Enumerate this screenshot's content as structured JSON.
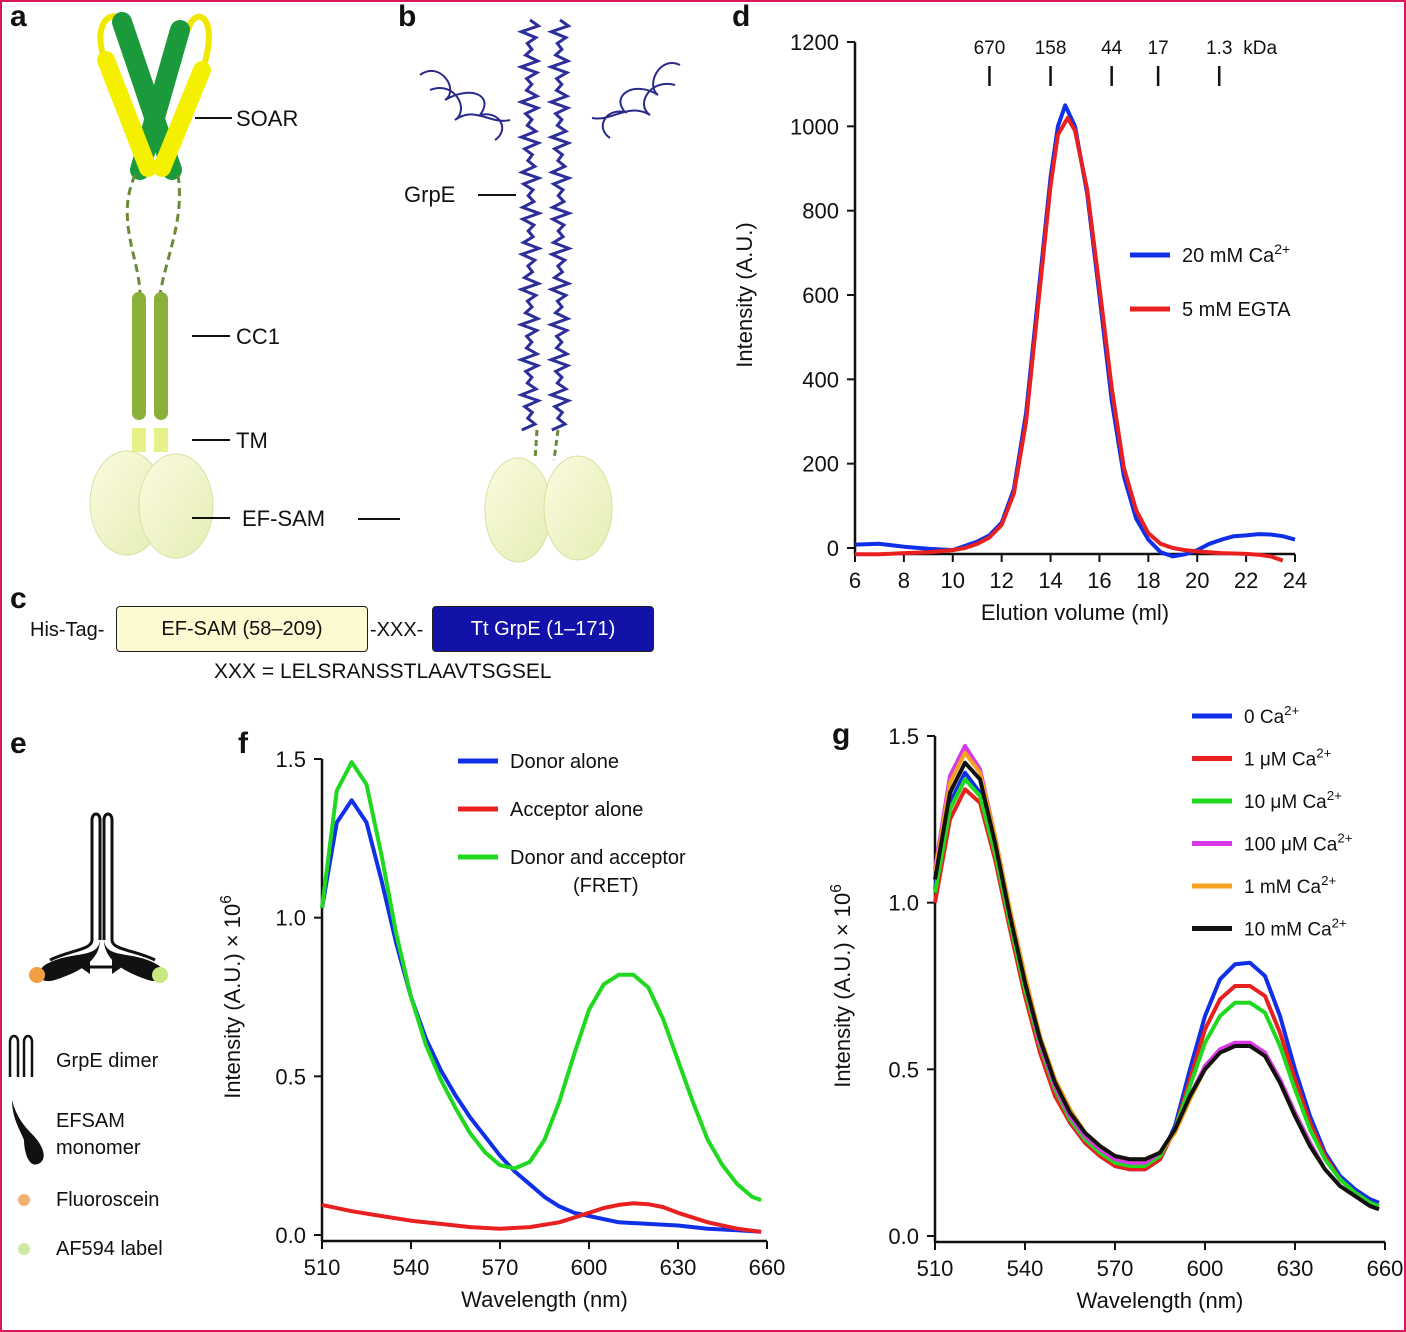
{
  "panels": {
    "a": {
      "letter": "a",
      "labels": {
        "soar": "SOAR",
        "cc1": "CC1",
        "tm": "TM",
        "efsam": "EF-SAM"
      }
    },
    "b": {
      "letter": "b",
      "labels": {
        "grpe": "GrpE"
      }
    },
    "c": {
      "letter": "c",
      "his_tag": "His-Tag-",
      "efsam_box": "EF-SAM (58–209)",
      "linker": "-XXX-",
      "grpe_box": "Tt GrpE (1–171)",
      "sequence": "XXX = LELSRANSSTLAAVTSGSEL",
      "colors": {
        "efsam_fill": "#fdf9d0",
        "grpe_fill": "#1212a8"
      }
    },
    "d": {
      "letter": "d"
    },
    "e": {
      "letter": "e",
      "legend": {
        "grpe_dimer": "GrpE dimer",
        "efsam_monomer_line1": "EFSAM",
        "efsam_monomer_line2": "monomer",
        "fluoroscein": "Fluoroscein",
        "af594": "AF594 label"
      }
    },
    "f": {
      "letter": "f"
    },
    "g": {
      "letter": "g"
    }
  },
  "chart_data": [
    {
      "panel": "d",
      "type": "line",
      "xlabel": "Elution volume (ml)",
      "ylabel": "Intensity (A.U.)",
      "xlim": [
        6,
        24
      ],
      "ylim": [
        0,
        1200
      ],
      "xticks": [
        "6",
        "8",
        "10",
        "12",
        "14",
        "16",
        "18",
        "20",
        "22",
        "24"
      ],
      "yticks": [
        "0",
        "200",
        "400",
        "600",
        "800",
        "1000",
        "1200"
      ],
      "mw_markers": {
        "positions": [
          11.5,
          14.0,
          16.5,
          18.4,
          20.9
        ],
        "labels": [
          "670",
          "158",
          "44",
          "17",
          "1.3"
        ],
        "unit": "kDa"
      },
      "legend_position": "right",
      "series": [
        {
          "name": "20 mM Ca2+",
          "color": "#1030e8",
          "x": [
            6,
            7,
            8,
            9,
            10,
            10.5,
            11,
            11.5,
            12,
            12.5,
            13,
            13.5,
            14,
            14.3,
            14.6,
            15,
            15.5,
            16,
            16.5,
            17,
            17.5,
            18,
            18.5,
            19,
            19.5,
            20,
            20.5,
            21,
            21.5,
            22,
            22.5,
            23,
            23.5,
            24
          ],
          "y": [
            8,
            10,
            3,
            -2,
            -5,
            5,
            15,
            30,
            60,
            140,
            320,
            600,
            880,
            1000,
            1050,
            1000,
            840,
            600,
            350,
            170,
            70,
            20,
            -10,
            -20,
            -15,
            -5,
            10,
            20,
            28,
            30,
            33,
            32,
            28,
            20
          ]
        },
        {
          "name": "5 mM EGTA",
          "color": "#e82020",
          "x": [
            6,
            7,
            8,
            9,
            10,
            10.5,
            11,
            11.5,
            12,
            12.5,
            13,
            13.5,
            14,
            14.3,
            14.7,
            15,
            15.5,
            16,
            16.5,
            17,
            17.5,
            18,
            18.5,
            19,
            19.5,
            20,
            20.5,
            21,
            21.5,
            22,
            22.5,
            23,
            23.5
          ],
          "y": [
            -15,
            -15,
            -12,
            -10,
            -5,
            0,
            10,
            25,
            55,
            130,
            300,
            580,
            860,
            980,
            1020,
            990,
            850,
            620,
            380,
            190,
            90,
            35,
            10,
            0,
            -5,
            -8,
            -10,
            -12,
            -13,
            -14,
            -16,
            -20,
            -30
          ]
        }
      ]
    },
    {
      "panel": "f",
      "type": "line",
      "xlabel": "Wavelength (nm)",
      "ylabel": "Intensity (A.U.) × 10",
      "ylabel_exp": "6",
      "xlim": [
        510,
        660
      ],
      "ylim": [
        0,
        1.5
      ],
      "xticks": [
        "510",
        "540",
        "570",
        "600",
        "630",
        "660"
      ],
      "yticks": [
        "0.0",
        "0.5",
        "1.0",
        "1.5"
      ],
      "legend_position": "top-right",
      "series": [
        {
          "name": "Donor alone",
          "color": "#1030e8",
          "x": [
            510,
            515,
            520,
            525,
            530,
            535,
            540,
            545,
            550,
            555,
            560,
            565,
            570,
            575,
            580,
            585,
            590,
            595,
            600,
            610,
            620,
            630,
            640,
            650,
            658
          ],
          "y": [
            1.03,
            1.3,
            1.37,
            1.3,
            1.12,
            0.92,
            0.75,
            0.62,
            0.52,
            0.44,
            0.37,
            0.31,
            0.25,
            0.2,
            0.16,
            0.12,
            0.09,
            0.07,
            0.06,
            0.04,
            0.035,
            0.03,
            0.02,
            0.015,
            0.01
          ]
        },
        {
          "name": "Acceptor alone",
          "color": "#e82020",
          "x": [
            510,
            520,
            530,
            540,
            550,
            560,
            570,
            580,
            590,
            600,
            605,
            610,
            615,
            620,
            625,
            630,
            640,
            650,
            658
          ],
          "y": [
            0.095,
            0.075,
            0.06,
            0.045,
            0.035,
            0.025,
            0.02,
            0.025,
            0.04,
            0.07,
            0.085,
            0.095,
            0.1,
            0.097,
            0.088,
            0.07,
            0.04,
            0.02,
            0.01
          ]
        },
        {
          "name": "Donor and acceptor (FRET)",
          "color": "#20d820",
          "x": [
            510,
            515,
            520,
            525,
            530,
            535,
            540,
            545,
            550,
            555,
            560,
            565,
            570,
            575,
            580,
            585,
            590,
            595,
            600,
            605,
            610,
            615,
            620,
            625,
            630,
            635,
            640,
            645,
            650,
            655,
            658
          ],
          "y": [
            1.03,
            1.4,
            1.49,
            1.42,
            1.2,
            0.95,
            0.75,
            0.6,
            0.49,
            0.4,
            0.32,
            0.26,
            0.22,
            0.21,
            0.23,
            0.3,
            0.42,
            0.57,
            0.71,
            0.79,
            0.82,
            0.82,
            0.78,
            0.68,
            0.55,
            0.42,
            0.3,
            0.22,
            0.16,
            0.12,
            0.11
          ]
        }
      ]
    },
    {
      "panel": "g",
      "type": "line",
      "xlabel": "Wavelength (nm)",
      "ylabel": "Intensity (A.U.) × 10",
      "ylabel_exp": "6",
      "xlim": [
        510,
        660
      ],
      "ylim": [
        0,
        1.5
      ],
      "xticks": [
        "510",
        "540",
        "570",
        "600",
        "630",
        "660"
      ],
      "yticks": [
        "0.0",
        "0.5",
        "1.0",
        "1.5"
      ],
      "legend_position": "top-right",
      "x": [
        510,
        515,
        520,
        525,
        530,
        535,
        540,
        545,
        550,
        555,
        560,
        565,
        570,
        575,
        580,
        585,
        590,
        595,
        600,
        605,
        610,
        615,
        620,
        625,
        630,
        635,
        640,
        645,
        650,
        655,
        658
      ],
      "series": [
        {
          "name": "0 Ca2+",
          "color": "#1030e8",
          "y": [
            1.04,
            1.3,
            1.39,
            1.33,
            1.15,
            0.93,
            0.73,
            0.56,
            0.43,
            0.34,
            0.28,
            0.24,
            0.21,
            0.2,
            0.2,
            0.23,
            0.33,
            0.5,
            0.66,
            0.77,
            0.815,
            0.82,
            0.78,
            0.66,
            0.5,
            0.36,
            0.25,
            0.18,
            0.14,
            0.11,
            0.1
          ]
        },
        {
          "name": "1 μM Ca2+",
          "color": "#e82020",
          "y": [
            1.0,
            1.25,
            1.34,
            1.3,
            1.13,
            0.92,
            0.72,
            0.55,
            0.42,
            0.34,
            0.28,
            0.24,
            0.21,
            0.2,
            0.2,
            0.23,
            0.32,
            0.47,
            0.62,
            0.71,
            0.75,
            0.75,
            0.72,
            0.61,
            0.47,
            0.34,
            0.24,
            0.17,
            0.13,
            0.1,
            0.09
          ]
        },
        {
          "name": "10 μM Ca2+",
          "color": "#20d820",
          "y": [
            1.03,
            1.28,
            1.37,
            1.32,
            1.15,
            0.94,
            0.74,
            0.57,
            0.44,
            0.35,
            0.29,
            0.25,
            0.22,
            0.21,
            0.21,
            0.24,
            0.32,
            0.45,
            0.58,
            0.66,
            0.7,
            0.7,
            0.67,
            0.57,
            0.44,
            0.32,
            0.23,
            0.17,
            0.13,
            0.1,
            0.09
          ]
        },
        {
          "name": "100 μM Ca2+",
          "color": "#d838e8",
          "y": [
            1.1,
            1.38,
            1.47,
            1.4,
            1.2,
            0.97,
            0.76,
            0.58,
            0.45,
            0.36,
            0.3,
            0.26,
            0.23,
            0.22,
            0.22,
            0.25,
            0.32,
            0.42,
            0.51,
            0.56,
            0.58,
            0.58,
            0.55,
            0.47,
            0.37,
            0.28,
            0.2,
            0.15,
            0.12,
            0.09,
            0.08
          ]
        },
        {
          "name": "1 mM Ca2+",
          "color": "#f5a020",
          "y": [
            1.09,
            1.36,
            1.45,
            1.39,
            1.2,
            0.98,
            0.78,
            0.6,
            0.47,
            0.38,
            0.31,
            0.27,
            0.24,
            0.23,
            0.23,
            0.25,
            0.31,
            0.41,
            0.5,
            0.55,
            0.57,
            0.57,
            0.54,
            0.46,
            0.36,
            0.27,
            0.2,
            0.15,
            0.12,
            0.09,
            0.08
          ]
        },
        {
          "name": "10 mM Ca2+",
          "color": "#111111",
          "y": [
            1.07,
            1.33,
            1.42,
            1.37,
            1.18,
            0.96,
            0.76,
            0.59,
            0.46,
            0.37,
            0.31,
            0.27,
            0.24,
            0.23,
            0.23,
            0.25,
            0.32,
            0.42,
            0.5,
            0.55,
            0.57,
            0.57,
            0.54,
            0.46,
            0.36,
            0.27,
            0.2,
            0.15,
            0.12,
            0.09,
            0.08
          ]
        }
      ]
    }
  ]
}
